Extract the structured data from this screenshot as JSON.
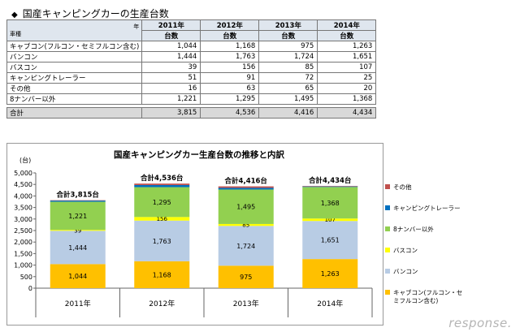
{
  "table": {
    "title": "国産キャンピングカーの生産台数",
    "bullet": "◆",
    "corner_top": "年",
    "corner_bottom": "車種",
    "years": [
      "2011年",
      "2012年",
      "2013年",
      "2014年"
    ],
    "unit": "台数",
    "rows": [
      {
        "label": "キャブコン(フルコン・セミフルコン含む)",
        "values": [
          "1,044",
          "1,168",
          "975",
          "1,263"
        ]
      },
      {
        "label": "バンコン",
        "values": [
          "1,444",
          "1,763",
          "1,724",
          "1,651"
        ]
      },
      {
        "label": "バスコン",
        "values": [
          "39",
          "156",
          "85",
          "107"
        ]
      },
      {
        "label": "キャンピングトレーラー",
        "values": [
          "51",
          "91",
          "72",
          "25"
        ]
      },
      {
        "label": "その他",
        "values": [
          "16",
          "63",
          "65",
          "20"
        ]
      },
      {
        "label": "8ナンバー以外",
        "values": [
          "1,221",
          "1,295",
          "1,495",
          "1,368"
        ]
      }
    ],
    "total": {
      "label": "合計",
      "values": [
        "3,815",
        "4,536",
        "4,416",
        "4,434"
      ]
    }
  },
  "chart_data": {
    "type": "bar",
    "stacked": true,
    "title": "国産キャンピングカー生産台数の推移と内訳",
    "ylabel": "(台)",
    "ylim": [
      0,
      5000
    ],
    "yticks": [
      0,
      500,
      1000,
      1500,
      2000,
      2500,
      3000,
      3500,
      4000,
      4500,
      5000
    ],
    "ytick_labels": [
      "0",
      "500",
      "1,000",
      "1,500",
      "2,000",
      "2,500",
      "3,000",
      "3,500",
      "4,000",
      "4,500",
      "5,000"
    ],
    "grid": false,
    "legend_position": "right",
    "categories": [
      "2011年",
      "2012年",
      "2013年",
      "2014年"
    ],
    "series": [
      {
        "name": "キャブコン(フルコン・セミフルコン含む)",
        "color": "#ffc000",
        "values": [
          1044,
          1168,
          975,
          1263
        ],
        "labels": [
          "1,044",
          "1,168",
          "975",
          "1,263"
        ]
      },
      {
        "name": "バンコン",
        "color": "#b8cce4",
        "values": [
          1444,
          1763,
          1724,
          1651
        ],
        "labels": [
          "1,444",
          "1,763",
          "1,724",
          "1,651"
        ]
      },
      {
        "name": "バスコン",
        "color": "#ffff00",
        "values": [
          39,
          156,
          85,
          107
        ],
        "labels": [
          "39",
          "156",
          "85",
          "107"
        ]
      },
      {
        "name": "8ナンバー以外",
        "color": "#92d050",
        "values": [
          1221,
          1295,
          1495,
          1368
        ],
        "labels": [
          "1,221",
          "1,295",
          "1,495",
          "1,368"
        ]
      },
      {
        "name": "キャンピングトレーラー",
        "color": "#0070c0",
        "values": [
          51,
          91,
          72,
          25
        ],
        "labels": null
      },
      {
        "name": "その他",
        "color": "#c0504d",
        "values": [
          16,
          63,
          65,
          20
        ],
        "labels": null
      }
    ],
    "totals": [
      "合計3,815台",
      "合計4,536台",
      "合計4,416台",
      "合計4,434台"
    ],
    "legend_order": [
      "その他",
      "キャンピングトレーラー",
      "8ナンバー以外",
      "バスコン",
      "バンコン",
      "キャブコン(フルコン・セミフルコン含む)"
    ],
    "legend_lines": [
      [
        "その他"
      ],
      [
        "キャンピングトレーラー"
      ],
      [
        "8ナンバー以外"
      ],
      [
        "バスコン"
      ],
      [
        "バンコン"
      ],
      [
        "キャブコン(フルコン・セ",
        "ミフルコン含む)"
      ]
    ]
  },
  "watermark": "response."
}
